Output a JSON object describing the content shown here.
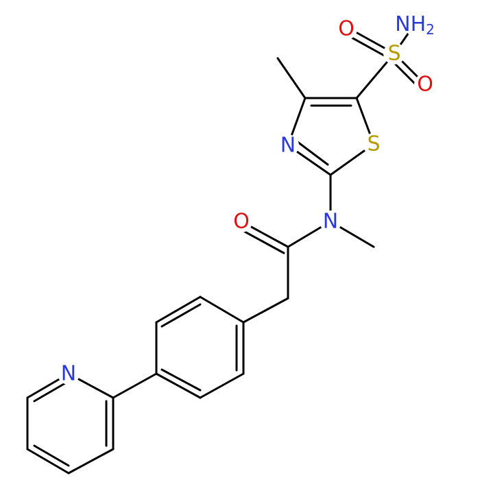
{
  "atoms": [
    {
      "label": "NH",
      "subscript": "2"
    },
    {
      "label": "S"
    },
    {
      "label": "O"
    },
    {
      "label": "O"
    },
    {
      "label": "S"
    },
    {
      "label": "N"
    },
    {
      "label": "N"
    },
    {
      "label": "O"
    },
    {
      "label": "N"
    }
  ]
}
